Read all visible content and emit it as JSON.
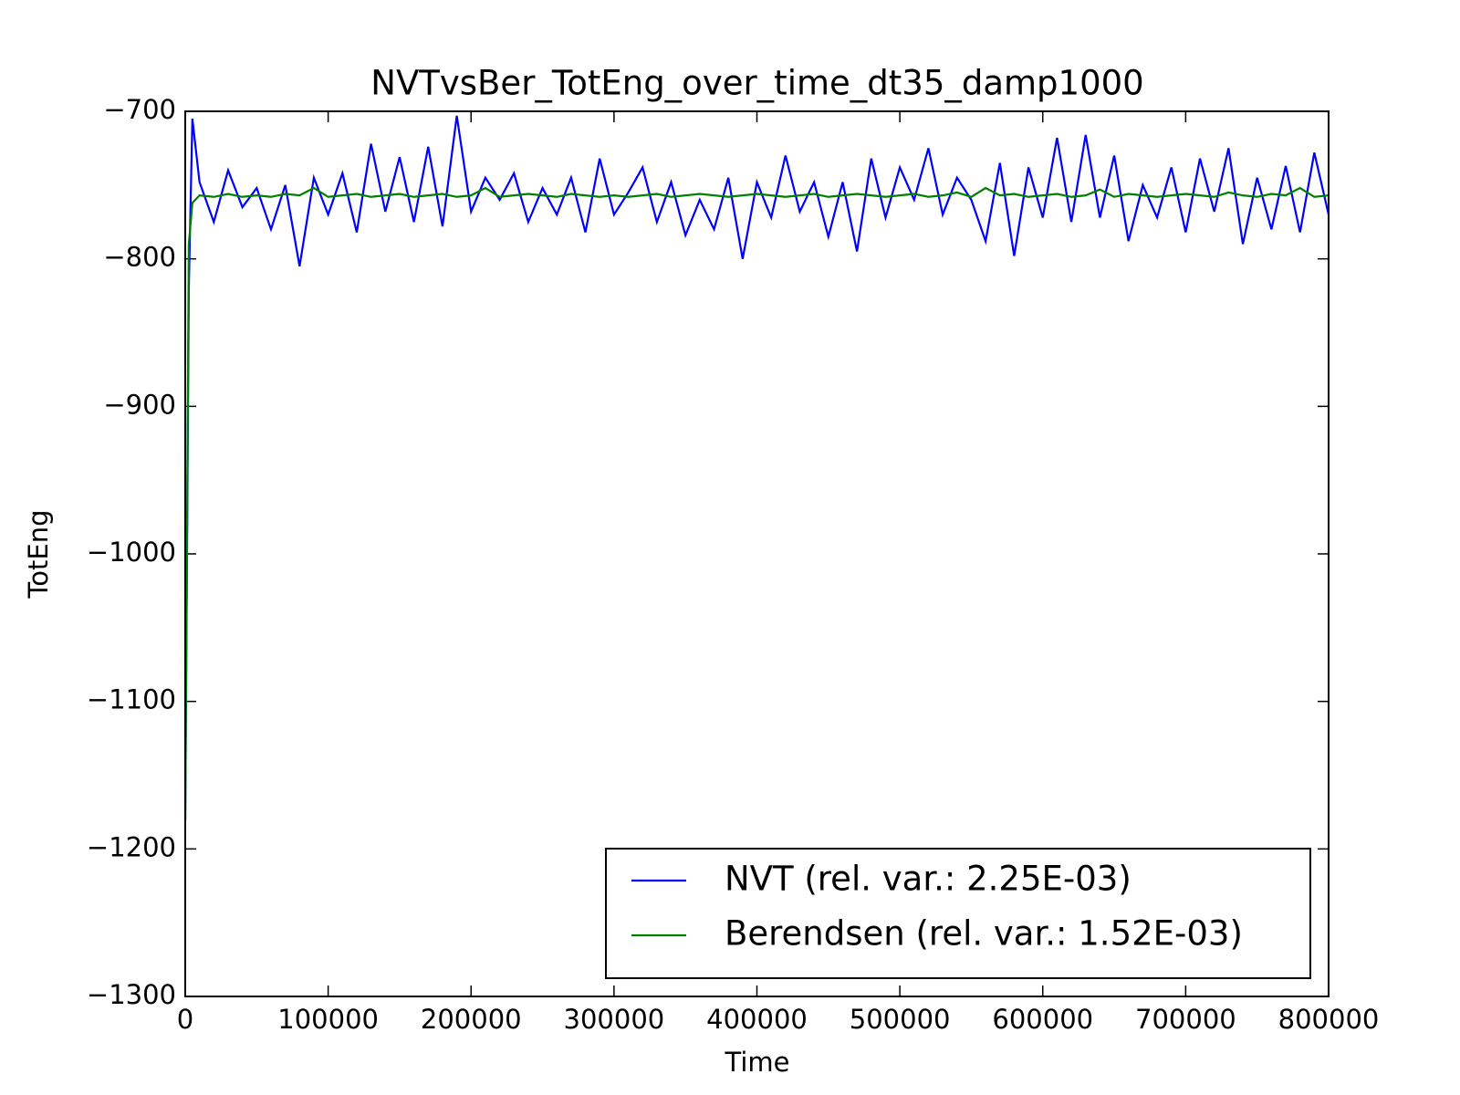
{
  "chart_data": {
    "type": "line",
    "title": "NVTvsBer_TotEng_over_time_dt35_damp1000",
    "x_label": "Time",
    "y_label": "TotEng",
    "x": [
      0,
      2500,
      5000,
      10000,
      20000,
      30000,
      40000,
      50000,
      60000,
      70000,
      80000,
      90000,
      100000,
      110000,
      120000,
      130000,
      140000,
      150000,
      160000,
      170000,
      180000,
      190000,
      200000,
      210000,
      220000,
      230000,
      240000,
      250000,
      260000,
      270000,
      280000,
      290000,
      300000,
      310000,
      320000,
      330000,
      340000,
      350000,
      360000,
      370000,
      380000,
      390000,
      400000,
      410000,
      420000,
      430000,
      440000,
      450000,
      460000,
      470000,
      480000,
      490000,
      500000,
      510000,
      520000,
      530000,
      540000,
      550000,
      560000,
      570000,
      580000,
      590000,
      600000,
      610000,
      620000,
      630000,
      640000,
      650000,
      660000,
      670000,
      680000,
      690000,
      700000,
      710000,
      720000,
      730000,
      740000,
      750000,
      760000,
      770000,
      780000,
      790000,
      800000
    ],
    "series": [
      {
        "name": "NVT (rel. var.: 2.25E-03)",
        "color": "#0000ff",
        "values": [
          -1180,
          -820,
          -705,
          -748,
          -775,
          -740,
          -765,
          -752,
          -780,
          -750,
          -805,
          -745,
          -770,
          -742,
          -782,
          -722,
          -768,
          -731,
          -775,
          -724,
          -778,
          -703,
          -768,
          -745,
          -760,
          -742,
          -775,
          -752,
          -770,
          -745,
          -782,
          -732,
          -770,
          -755,
          -738,
          -775,
          -748,
          -784,
          -760,
          -780,
          -745,
          -800,
          -748,
          -772,
          -730,
          -768,
          -748,
          -785,
          -748,
          -795,
          -732,
          -772,
          -738,
          -760,
          -725,
          -770,
          -745,
          -760,
          -788,
          -735,
          -798,
          -738,
          -772,
          -718,
          -775,
          -716,
          -772,
          -730,
          -788,
          -750,
          -772,
          -738,
          -782,
          -732,
          -768,
          -725,
          -790,
          -745,
          -780,
          -737,
          -782,
          -728,
          -770
        ]
      },
      {
        "name": "Berendsen (rel. var.: 1.52E-03)",
        "color": "#008000",
        "values": [
          -1180,
          -790,
          -762,
          -757,
          -758,
          -756,
          -758,
          -757,
          -758,
          -756,
          -757,
          -752,
          -758,
          -757,
          -756,
          -758,
          -757,
          -756,
          -758,
          -757,
          -756,
          -758,
          -757,
          -752,
          -758,
          -757,
          -756,
          -757,
          -758,
          -756,
          -757,
          -758,
          -757,
          -758,
          -757,
          -756,
          -758,
          -757,
          -756,
          -757,
          -758,
          -757,
          -756,
          -757,
          -758,
          -757,
          -756,
          -758,
          -757,
          -756,
          -757,
          -758,
          -757,
          -756,
          -758,
          -757,
          -755,
          -758,
          -752,
          -757,
          -756,
          -758,
          -757,
          -756,
          -758,
          -757,
          -753,
          -758,
          -756,
          -757,
          -758,
          -757,
          -756,
          -757,
          -758,
          -755,
          -757,
          -758,
          -756,
          -757,
          -752,
          -758,
          -757
        ]
      }
    ],
    "xlim": [
      0,
      800000
    ],
    "ylim": [
      -1300,
      -700
    ],
    "xticks": [
      0,
      100000,
      200000,
      300000,
      400000,
      500000,
      600000,
      700000,
      800000
    ],
    "yticks": [
      {
        "value": -1300,
        "label": "−1300"
      },
      {
        "value": -1200,
        "label": "−1200"
      },
      {
        "value": -1100,
        "label": "−1100"
      },
      {
        "value": -1000,
        "label": "−1000"
      },
      {
        "value": -900,
        "label": "−900"
      },
      {
        "value": -800,
        "label": "−800"
      },
      {
        "value": -700,
        "label": "−700"
      }
    ],
    "grid": false,
    "legend": "lower right"
  }
}
